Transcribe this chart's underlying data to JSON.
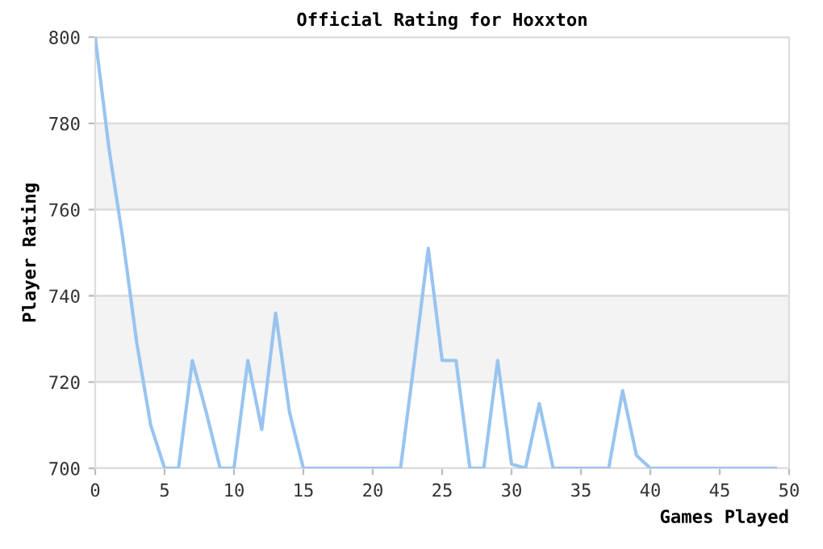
{
  "chart_data": {
    "type": "line",
    "title": "Official Rating for Hoxxton",
    "xlabel": "Games Played",
    "ylabel": "Player Rating",
    "x": [
      0,
      1,
      2,
      3,
      4,
      5,
      6,
      7,
      8,
      9,
      10,
      11,
      12,
      13,
      14,
      15,
      16,
      17,
      18,
      19,
      20,
      21,
      22,
      23,
      24,
      25,
      26,
      27,
      28,
      29,
      30,
      31,
      32,
      33,
      34,
      35,
      36,
      37,
      38,
      39,
      40,
      41,
      42,
      43,
      44,
      45,
      46,
      47,
      48,
      49
    ],
    "series": [
      {
        "color": "#99c4f0",
        "values": [
          800,
          774,
          753,
          729,
          710,
          700,
          700,
          725,
          713,
          700,
          700,
          725,
          709,
          736,
          713,
          700,
          700,
          700,
          700,
          700,
          700,
          700,
          700,
          725,
          751,
          725,
          725,
          700,
          700,
          725,
          701,
          700,
          715,
          700,
          700,
          700,
          700,
          700,
          718,
          703,
          700,
          700,
          700,
          700,
          700,
          700,
          700,
          700,
          700,
          700
        ]
      }
    ],
    "xlim": [
      0,
      50
    ],
    "ylim": [
      700,
      800
    ],
    "xticks": [
      0,
      5,
      10,
      15,
      20,
      25,
      30,
      35,
      40,
      45,
      50
    ],
    "yticks": [
      700,
      720,
      740,
      760,
      780,
      800
    ],
    "grid": "y",
    "marker": "none",
    "line_style": "solid",
    "bands": [
      {
        "axis": "y",
        "from": 720,
        "to": 740,
        "color": "#f3f3f3"
      },
      {
        "axis": "y",
        "from": 760,
        "to": 780,
        "color": "#f3f3f3"
      }
    ]
  }
}
